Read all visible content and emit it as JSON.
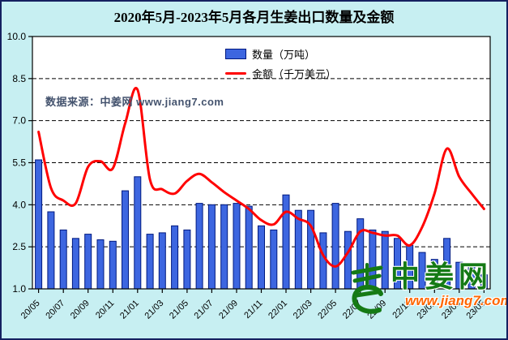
{
  "title": "2020年5月-2023年5月各月生姜出口数量及金额",
  "legend": {
    "quantity_label": "数量（万吨）",
    "amount_label": "金额（千万美元）"
  },
  "watermark": {
    "source_text": "数据来源：中姜网 www.jiang7.com"
  },
  "logo": {
    "name": "中姜网",
    "url": "www.jiang7.com"
  },
  "colors": {
    "background": "#C7EFF2",
    "plot_background": "#FFFFFF",
    "bar_fill": "#3D66E0",
    "bar_border": "#00197F",
    "line": "#FF0000",
    "grid": "#000000",
    "axis": "#000000",
    "logo_green": "#157A15",
    "logo_orange": "#FF6600",
    "source_text_color": "#44536E",
    "outer_border": "#152060"
  },
  "chart_data": {
    "type": "bar+line",
    "title": "2020年5月-2023年5月各月生姜出口数量及金额",
    "categories": [
      "20/05",
      "20/06",
      "20/07",
      "20/08",
      "20/09",
      "20/10",
      "20/11",
      "20/12",
      "21/01",
      "21/02",
      "21/03",
      "21/04",
      "21/05",
      "21/06",
      "21/07",
      "21/08",
      "21/09",
      "21/10",
      "21/11",
      "21/12",
      "22/01",
      "22/02",
      "22/03",
      "22/04",
      "22/05",
      "22/06",
      "22/07",
      "22/08",
      "22/09",
      "22/10",
      "22/11",
      "22/12",
      "23/01",
      "23/02",
      "23/03",
      "23/04",
      "23/05"
    ],
    "x_tick_labels": [
      "20/05",
      "20/07",
      "20/09",
      "20/11",
      "21/01",
      "21/03",
      "21/05",
      "21/07",
      "21/09",
      "21/11",
      "22/01",
      "22/03",
      "22/05",
      "22/07",
      "22/09",
      "22/11",
      "23/01",
      "23/03",
      "23/05"
    ],
    "series": [
      {
        "name": "数量（万吨）",
        "type": "bar",
        "values": [
          5.6,
          3.75,
          3.1,
          2.8,
          2.95,
          2.75,
          2.7,
          4.5,
          5.0,
          2.95,
          3.0,
          3.25,
          3.1,
          4.05,
          4.0,
          4.0,
          4.05,
          3.95,
          3.25,
          3.1,
          4.35,
          3.8,
          3.8,
          3.0,
          4.05,
          3.05,
          3.5,
          3.1,
          3.05,
          2.8,
          2.55,
          2.3,
          2.05,
          2.8,
          1.95,
          1.85,
          1.5
        ]
      },
      {
        "name": "金额（千万美元）",
        "type": "line",
        "values": [
          6.6,
          4.6,
          4.15,
          4.05,
          5.35,
          5.55,
          5.3,
          6.9,
          8.1,
          4.9,
          4.55,
          4.4,
          4.85,
          5.1,
          4.8,
          4.45,
          4.15,
          3.85,
          3.45,
          3.3,
          3.75,
          3.5,
          3.25,
          2.2,
          1.8,
          2.3,
          3.05,
          3.0,
          2.9,
          2.9,
          2.55,
          3.2,
          4.4,
          6.0,
          5.0,
          4.4,
          3.85
        ]
      }
    ],
    "ylim": [
      1.0,
      10.0
    ],
    "y_ticks": [
      "10.0",
      "8.5",
      "7.0",
      "5.5",
      "4.0",
      "2.5",
      "1.0"
    ],
    "y_tick_values": [
      10.0,
      8.5,
      7.0,
      5.5,
      4.0,
      2.5,
      1.0
    ],
    "grid": "horizontal-dashed",
    "legend_position": "top-center-inside"
  }
}
